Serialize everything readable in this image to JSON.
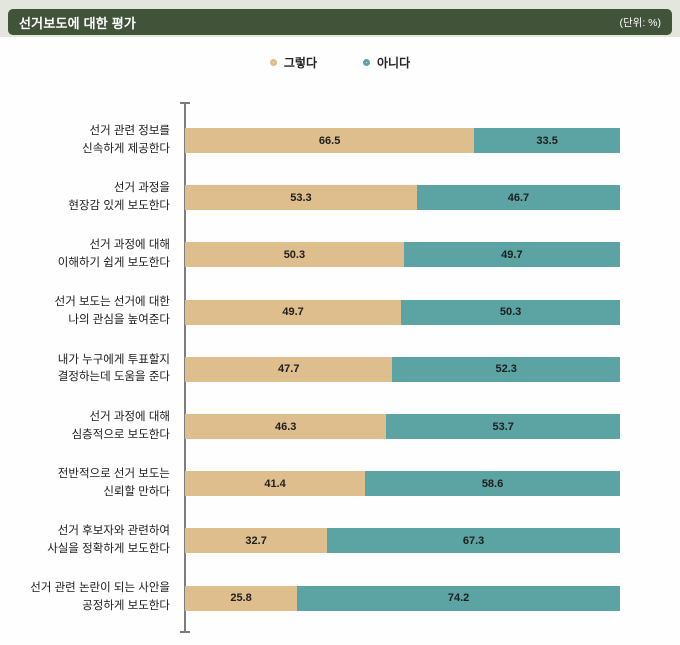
{
  "header": {
    "title": "선거보도에 대한 평가",
    "unit": "(단위: %)"
  },
  "legend": {
    "items": [
      {
        "label": "그렇다",
        "color": "#debe8c"
      },
      {
        "label": "아니다",
        "color": "#5ca3a4"
      }
    ]
  },
  "colors": {
    "header_bg": "#41543a",
    "header_text": "#ffffff",
    "top_band_bg": "#e2e6dd",
    "axis": "#7d7d7d",
    "value_text": "#1e1e1e"
  },
  "chart_data": {
    "type": "bar",
    "orientation": "horizontal",
    "stacked": true,
    "title": "선거보도에 대한 평가",
    "unit_label": "(단위: %)",
    "xlim": [
      0,
      100
    ],
    "grid": false,
    "legend_position": "top-center",
    "categories": [
      "선거 관련 정보를\n신속하게 제공한다",
      "선거 과정을\n현장감 있게 보도한다",
      "선거 과정에 대해\n이해하기 쉽게 보도한다",
      "선거 보도는 선거에 대한\n나의 관심을 높여준다",
      "내가 누구에게 투표할지\n결정하는데 도움을 준다",
      "선거 과정에 대해\n심층적으로 보도한다",
      "전반적으로 선거 보도는\n신뢰할 만하다",
      "선거 후보자와 관련하여\n사실을 정확하게 보도한다",
      "선거 관련 논란이 되는 사안을\n공정하게 보도한다"
    ],
    "series": [
      {
        "name": "그렇다",
        "color": "#debe8c",
        "values": [
          66.5,
          53.3,
          50.3,
          49.7,
          47.7,
          46.3,
          41.4,
          32.7,
          25.8
        ]
      },
      {
        "name": "아니다",
        "color": "#5ca3a4",
        "values": [
          33.5,
          46.7,
          49.7,
          50.3,
          52.3,
          53.7,
          58.6,
          67.3,
          74.2
        ]
      }
    ]
  }
}
